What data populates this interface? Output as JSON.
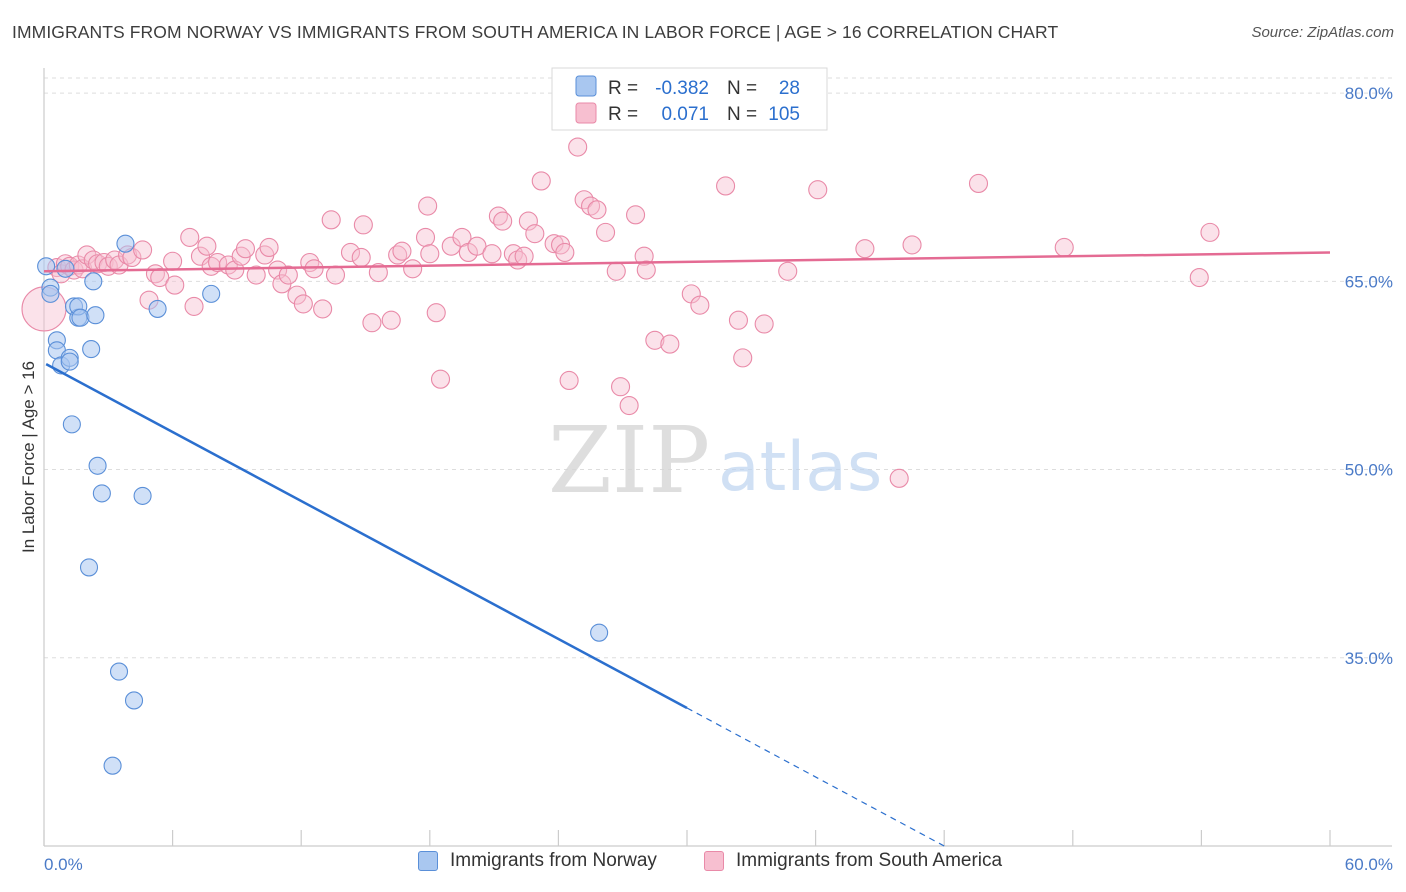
{
  "header": {
    "title": "IMMIGRANTS FROM NORWAY VS IMMIGRANTS FROM SOUTH AMERICA IN LABOR FORCE | AGE > 16 CORRELATION CHART",
    "source": "Source: ZipAtlas.com"
  },
  "watermark": {
    "zip": "ZIP",
    "atlas": "atlas"
  },
  "colors": {
    "norway_fill": "#a9c7f0",
    "norway_stroke": "#5a8fd8",
    "norway_line": "#2b6fce",
    "sa_fill": "#f7bfd0",
    "sa_stroke": "#e98aa8",
    "sa_line": "#e46b93",
    "axis_text": "#4a7ac7",
    "grid": "#dddddd"
  },
  "legend": {
    "rows": [
      {
        "r_label": "R =",
        "r_value": "-0.382",
        "n_label": "N =",
        "n_value": "28"
      },
      {
        "r_label": "R =",
        "r_value": "0.071",
        "n_label": "N =",
        "n_value": "105"
      }
    ]
  },
  "bottom_legend": {
    "norway": "Immigrants from Norway",
    "south_america": "Immigrants from South America"
  },
  "chart_data": {
    "type": "scatter",
    "title": "IMMIGRANTS FROM NORWAY VS IMMIGRANTS FROM SOUTH AMERICA IN LABOR FORCE | AGE > 16 CORRELATION CHART",
    "xlabel": "",
    "ylabel": "In Labor Force | Age > 16",
    "xlim": [
      0,
      60
    ],
    "ylim": [
      20,
      82
    ],
    "x_tick_labels": [
      "0.0%",
      "60.0%"
    ],
    "y_ticks": [
      35,
      50,
      65,
      80
    ],
    "y_tick_labels": [
      "35.0%",
      "50.0%",
      "65.0%",
      "80.0%"
    ],
    "grid": true,
    "series": [
      {
        "name": "Immigrants from Norway",
        "r": -0.382,
        "n": 28,
        "trend": {
          "x0": 0.1,
          "y0": 58.4,
          "x1": 30.0,
          "y1": 31.0,
          "dash_x1": 42.0,
          "dash_y1": 20.0
        },
        "points": [
          [
            0.1,
            66.2
          ],
          [
            0.3,
            64.5
          ],
          [
            0.3,
            64.0
          ],
          [
            0.6,
            60.3
          ],
          [
            0.6,
            59.5
          ],
          [
            0.8,
            58.3
          ],
          [
            1.0,
            66.0
          ],
          [
            1.2,
            58.9
          ],
          [
            1.2,
            58.6
          ],
          [
            1.3,
            53.6
          ],
          [
            1.4,
            63.0
          ],
          [
            1.6,
            62.1
          ],
          [
            1.6,
            63.0
          ],
          [
            1.7,
            62.1
          ],
          [
            2.3,
            65.0
          ],
          [
            2.2,
            59.6
          ],
          [
            2.4,
            62.3
          ],
          [
            2.5,
            50.3
          ],
          [
            2.7,
            48.1
          ],
          [
            3.8,
            68.0
          ],
          [
            4.6,
            47.9
          ],
          [
            5.3,
            62.8
          ],
          [
            7.8,
            64.0
          ],
          [
            2.1,
            42.2
          ],
          [
            3.5,
            33.9
          ],
          [
            4.2,
            31.6
          ],
          [
            3.2,
            26.4
          ],
          [
            25.9,
            37.0
          ]
        ]
      },
      {
        "name": "Immigrants from South America",
        "r": 0.071,
        "n": 105,
        "trend": {
          "x0": 0,
          "y0": 65.8,
          "x1": 60,
          "y1": 67.3
        },
        "points": [
          [
            0.0,
            62.8
          ],
          [
            0.6,
            66.1
          ],
          [
            0.8,
            65.6
          ],
          [
            1.0,
            66.4
          ],
          [
            1.2,
            66.2
          ],
          [
            1.4,
            65.9
          ],
          [
            1.6,
            66.3
          ],
          [
            1.8,
            66.0
          ],
          [
            2.0,
            67.1
          ],
          [
            2.3,
            66.7
          ],
          [
            2.5,
            66.4
          ],
          [
            2.8,
            66.5
          ],
          [
            3.0,
            66.2
          ],
          [
            3.3,
            66.7
          ],
          [
            3.5,
            66.3
          ],
          [
            3.9,
            67.1
          ],
          [
            4.1,
            66.9
          ],
          [
            4.6,
            67.5
          ],
          [
            4.9,
            63.5
          ],
          [
            5.2,
            65.6
          ],
          [
            5.4,
            65.3
          ],
          [
            6.0,
            66.6
          ],
          [
            6.1,
            64.7
          ],
          [
            6.8,
            68.5
          ],
          [
            7.0,
            63.0
          ],
          [
            7.3,
            67.0
          ],
          [
            7.6,
            67.8
          ],
          [
            7.8,
            66.2
          ],
          [
            8.1,
            66.5
          ],
          [
            8.6,
            66.3
          ],
          [
            8.9,
            65.9
          ],
          [
            9.2,
            67.0
          ],
          [
            9.4,
            67.6
          ],
          [
            9.9,
            65.5
          ],
          [
            10.3,
            67.1
          ],
          [
            10.5,
            67.7
          ],
          [
            10.9,
            65.9
          ],
          [
            11.1,
            64.8
          ],
          [
            11.4,
            65.5
          ],
          [
            11.8,
            63.9
          ],
          [
            12.1,
            63.2
          ],
          [
            12.4,
            66.5
          ],
          [
            12.6,
            66.0
          ],
          [
            13.0,
            62.8
          ],
          [
            13.6,
            65.5
          ],
          [
            13.4,
            69.9
          ],
          [
            14.3,
            67.3
          ],
          [
            14.8,
            66.9
          ],
          [
            14.9,
            69.5
          ],
          [
            15.3,
            61.7
          ],
          [
            15.6,
            65.7
          ],
          [
            16.2,
            61.9
          ],
          [
            16.5,
            67.1
          ],
          [
            16.7,
            67.4
          ],
          [
            17.2,
            66.0
          ],
          [
            17.8,
            68.5
          ],
          [
            18.0,
            67.2
          ],
          [
            17.9,
            71.0
          ],
          [
            18.3,
            62.5
          ],
          [
            18.5,
            57.2
          ],
          [
            19.0,
            67.8
          ],
          [
            19.5,
            68.5
          ],
          [
            19.8,
            67.3
          ],
          [
            20.2,
            67.8
          ],
          [
            20.9,
            67.2
          ],
          [
            21.2,
            70.2
          ],
          [
            21.4,
            69.8
          ],
          [
            21.9,
            67.2
          ],
          [
            22.1,
            66.7
          ],
          [
            22.4,
            67.0
          ],
          [
            22.6,
            69.8
          ],
          [
            22.9,
            68.8
          ],
          [
            23.2,
            73.0
          ],
          [
            23.8,
            68.0
          ],
          [
            24.1,
            67.9
          ],
          [
            24.3,
            67.3
          ],
          [
            24.5,
            57.1
          ],
          [
            24.9,
            75.7
          ],
          [
            25.2,
            71.5
          ],
          [
            25.5,
            71.0
          ],
          [
            25.8,
            70.7
          ],
          [
            26.2,
            68.9
          ],
          [
            26.7,
            65.8
          ],
          [
            26.9,
            56.6
          ],
          [
            27.3,
            55.1
          ],
          [
            27.6,
            70.3
          ],
          [
            28.0,
            67.0
          ],
          [
            28.1,
            65.9
          ],
          [
            28.5,
            60.3
          ],
          [
            29.2,
            60.0
          ],
          [
            30.2,
            64.0
          ],
          [
            30.6,
            63.1
          ],
          [
            31.8,
            72.6
          ],
          [
            32.4,
            61.9
          ],
          [
            32.6,
            58.9
          ],
          [
            33.6,
            61.6
          ],
          [
            34.7,
            65.8
          ],
          [
            36.1,
            72.3
          ],
          [
            38.3,
            67.6
          ],
          [
            39.9,
            49.3
          ],
          [
            43.6,
            72.8
          ],
          [
            47.6,
            67.7
          ],
          [
            54.4,
            68.9
          ],
          [
            53.9,
            65.3
          ],
          [
            40.5,
            67.9
          ]
        ]
      }
    ]
  }
}
